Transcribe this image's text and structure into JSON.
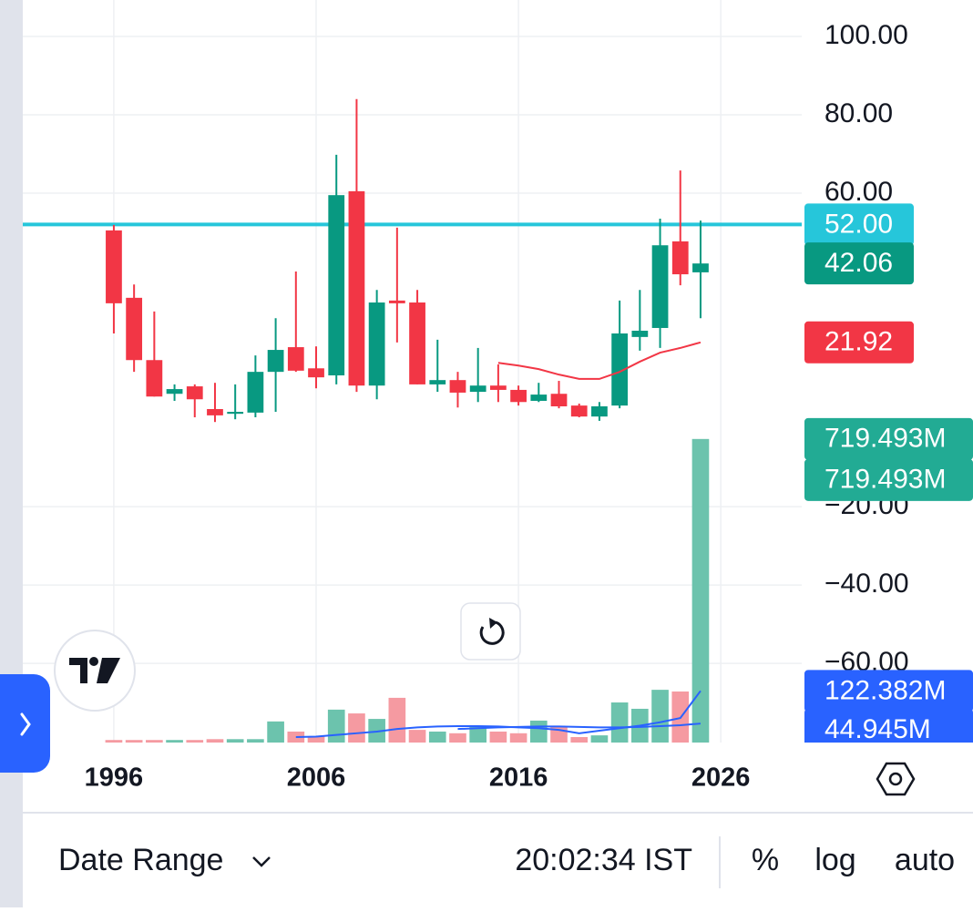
{
  "chart_data": {
    "type": "candlestick",
    "x": [
      1996,
      1997,
      1998,
      1999,
      2000,
      2001,
      2002,
      2003,
      2004,
      2005,
      2006,
      2007,
      2008,
      2009,
      2010,
      2011,
      2012,
      2013,
      2014,
      2015,
      2016,
      2017,
      2018,
      2019,
      2020,
      2021,
      2022,
      2023,
      2024,
      2025
    ],
    "open": [
      50.5,
      33.3,
      17.4,
      8.8,
      10.7,
      4.9,
      3.7,
      4.0,
      14.4,
      20.7,
      15.3,
      13.5,
      60.5,
      10.9,
      32.6,
      32.1,
      11.2,
      12.3,
      9.3,
      10.9,
      9.8,
      7.0,
      8.8,
      5.8,
      3.0,
      5.8,
      23.3,
      25.6,
      47.7,
      39.8
    ],
    "high": [
      51.9,
      36.7,
      29.8,
      11.2,
      11.2,
      11.6,
      11.2,
      18.6,
      28.1,
      40.0,
      20.9,
      69.8,
      84.0,
      35.3,
      51.2,
      35.3,
      22.6,
      14.4,
      20.5,
      16.3,
      10.9,
      11.6,
      12.1,
      6.3,
      6.7,
      32.6,
      35.3,
      53.5,
      65.8,
      53.0
    ],
    "low": [
      24.2,
      14.4,
      8.1,
      7.0,
      2.8,
      1.6,
      2.3,
      2.8,
      4.2,
      14.4,
      10.2,
      11.2,
      9.3,
      7.4,
      21.9,
      11.2,
      9.3,
      5.3,
      6.7,
      6.7,
      5.8,
      6.7,
      5.1,
      2.8,
      1.9,
      5.1,
      19.8,
      20.5,
      36.5,
      28.1
    ],
    "close": [
      31.9,
      17.4,
      8.1,
      10.0,
      7.4,
      3.3,
      4.2,
      14.4,
      20.0,
      14.7,
      13.0,
      59.5,
      10.9,
      32.1,
      31.9,
      11.2,
      12.3,
      9.1,
      10.9,
      9.8,
      6.7,
      8.6,
      5.6,
      3.0,
      5.6,
      24.2,
      24.9,
      46.7,
      39.3,
      42.06
    ],
    "up_color": "#089981",
    "down_color": "#f23645",
    "xlim": [
      1991.5,
      2030
    ],
    "xticks": [
      1996,
      2006,
      2016,
      2026
    ],
    "ylim": [
      -80.2,
      109.3
    ],
    "yticks": [
      {
        "value": 100,
        "label": "100.00"
      },
      {
        "value": 80,
        "label": "80.00"
      },
      {
        "value": 60,
        "label": "60.00"
      },
      {
        "value": -20,
        "label": "−20.00"
      },
      {
        "value": -40,
        "label": "−40.00"
      },
      {
        "value": -60,
        "label": "−60.00"
      }
    ],
    "grid": true,
    "hline": {
      "value": 52,
      "color": "#26c6da"
    },
    "ma": {
      "x": [
        2015,
        2016,
        2017,
        2018,
        2019,
        2020,
        2021,
        2022,
        2023,
        2024,
        2025
      ],
      "values": [
        16.7,
        16.0,
        15.1,
        13.7,
        12.6,
        12.6,
        14.4,
        17.0,
        19.3,
        20.5,
        21.92
      ],
      "color": "#f23645"
    },
    "price_labels": [
      {
        "value": 52,
        "label": "52.00",
        "color": "#26c6da"
      },
      {
        "value": 42.06,
        "label": "42.06",
        "color": "#089981"
      },
      {
        "value": 21.92,
        "label": "21.92",
        "color": "#f23645"
      }
    ],
    "volume": {
      "axis": "y2",
      "values": [
        6,
        6,
        6,
        6,
        6,
        8,
        8,
        8,
        50,
        26,
        15,
        78,
        69,
        56,
        106,
        30,
        26,
        22,
        39,
        26,
        22,
        52,
        39,
        13,
        17,
        95,
        80,
        125,
        121,
        719.493
      ],
      "up_color": "#6cc3ad",
      "down_color": "#f59aa1"
    },
    "y2lim": [
      0,
      1760
    ],
    "volume_ma": [
      {
        "x": [
          2005,
          2006,
          2007,
          2008,
          2009,
          2010,
          2011,
          2012,
          2013,
          2014,
          2015,
          2016,
          2017,
          2018,
          2019,
          2020,
          2021,
          2022,
          2023,
          2024,
          2025
        ],
        "values": [
          13,
          14,
          18,
          22,
          26,
          32,
          36,
          38,
          39,
          39,
          38,
          36,
          34,
          30,
          22,
          28,
          34,
          40,
          48,
          58,
          122.382
        ],
        "color": "#2962ff",
        "axis": "y2"
      },
      {
        "x": [
          2013,
          2014,
          2015,
          2016,
          2017,
          2018,
          2019,
          2020,
          2021,
          2022,
          2023,
          2024,
          2025
        ],
        "values": [
          32,
          34,
          36,
          37,
          38,
          38,
          37,
          36,
          36,
          37,
          39,
          41,
          44.945
        ],
        "color": "#2962ff",
        "axis": "y2"
      }
    ],
    "volume_labels": [
      {
        "value": 719.493,
        "label": "719.493M",
        "color": "#22ab94"
      },
      {
        "value": 719.493,
        "label": "719.493M",
        "color": "#22ab94"
      },
      {
        "value": 122.382,
        "label": "122.382M",
        "color": "#2962ff"
      },
      {
        "value": 44.945,
        "label": "44.945M",
        "color": "#2962ff"
      }
    ]
  },
  "toolbar": {
    "date_range": "Date Range",
    "time": "20:02:34 IST",
    "percent": "%",
    "log": "log",
    "auto": "auto"
  }
}
